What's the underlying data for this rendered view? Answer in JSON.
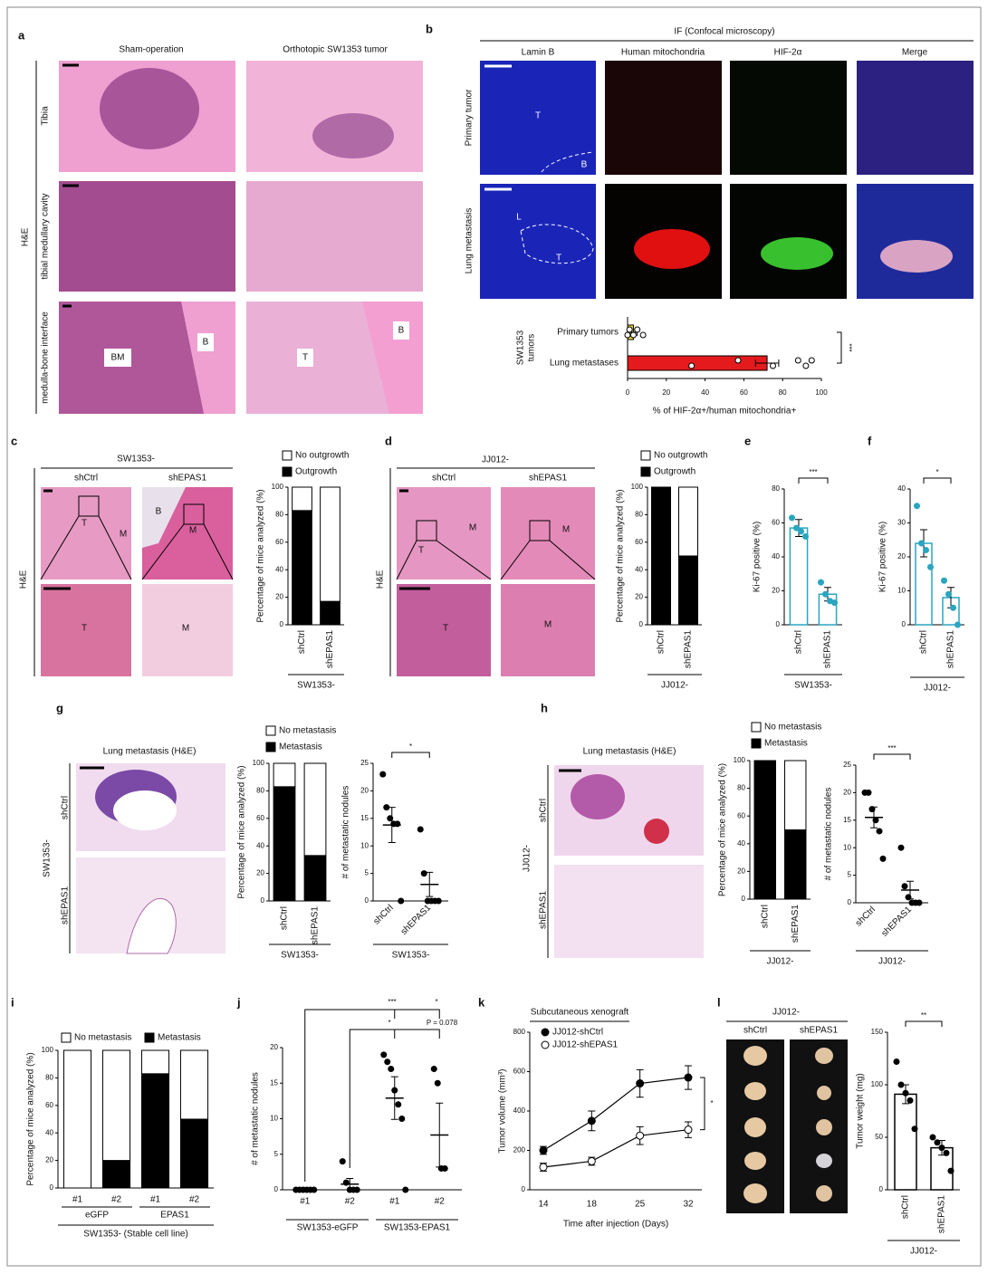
{
  "panel_letters": [
    "a",
    "b",
    "c",
    "d",
    "e",
    "f",
    "g",
    "h",
    "i",
    "j",
    "k",
    "l"
  ],
  "a": {
    "columns": [
      "Sham-operation",
      "Orthotopic SW1353 tumor"
    ],
    "rows": [
      "Tibia",
      "tibial medullary cavity",
      "medulla-bone interface"
    ],
    "stain": "H&E",
    "labels": [
      "BM",
      "B",
      "T",
      "B"
    ]
  },
  "b": {
    "title": "IF (Confocal microscopy)",
    "columns": [
      "Lamin B",
      "Human mitochondria",
      "HIF-2α",
      "Merge"
    ],
    "rows": [
      "Primary tumor",
      "Lung metastasis"
    ],
    "labels": [
      "T",
      "B",
      "L",
      "T"
    ]
  },
  "c": {
    "group": "SW1353-",
    "columns": [
      "shCtrl",
      "shEPAS1"
    ],
    "stain": "H&E",
    "labels": [
      "T",
      "M",
      "B",
      "M",
      "T",
      "M"
    ]
  },
  "d": {
    "group": "JJ012-",
    "columns": [
      "shCtrl",
      "shEPAS1"
    ],
    "stain": "H&E",
    "labels": [
      "T",
      "M",
      "M",
      "T",
      "M"
    ]
  },
  "g": {
    "title": "Lung metastasis (H&E)",
    "group": "SW1353-",
    "rows": [
      "shCtrl",
      "shEPAS1"
    ]
  },
  "h": {
    "title": "Lung metastasis (H&E)",
    "group": "JJ012-",
    "rows": [
      "shCtrl",
      "shEPAS1"
    ]
  },
  "l": {
    "title": "JJ012-",
    "columns": [
      "shCtrl",
      "shEPAS1"
    ]
  },
  "chart_data": [
    {
      "type": "hbar",
      "categories": [
        "Primary tumors",
        "Lung metastases"
      ],
      "category_title": [
        "SW1353",
        "tumors"
      ],
      "values": [
        3,
        72
      ],
      "errors": [
        2,
        6
      ],
      "colors": [
        "#f3dc2b",
        "#e41a1c"
      ],
      "points": [
        [
          0,
          1,
          3,
          5,
          8
        ],
        [
          33,
          57,
          75,
          88,
          92,
          95
        ]
      ],
      "xlim": [
        0,
        100
      ],
      "xticks": [
        0,
        20,
        40,
        60,
        80,
        100
      ],
      "xlabel": "% of HIF-2α+/human mitochondria+",
      "significance": "***"
    },
    {
      "type": "stacked_bar",
      "categories": [
        "shCtrl",
        "shEPAS1"
      ],
      "series": [
        {
          "name": "Outgrowth",
          "color": "#000000",
          "values": [
            83,
            17
          ]
        },
        {
          "name": "No outgrowth",
          "color": "#ffffff",
          "values": [
            17,
            83
          ]
        }
      ],
      "ylim": [
        0,
        100
      ],
      "yticks": [
        0,
        20,
        40,
        60,
        80,
        100
      ],
      "ylabel": "Percentage of mice analyzed (%)",
      "group": "SW1353-"
    },
    {
      "type": "stacked_bar",
      "categories": [
        "shCtrl",
        "shEPAS1"
      ],
      "series": [
        {
          "name": "Outgrowth",
          "color": "#000000",
          "values": [
            100,
            50
          ]
        },
        {
          "name": "No outgrowth",
          "color": "#ffffff",
          "values": [
            0,
            50
          ]
        }
      ],
      "ylim": [
        0,
        100
      ],
      "yticks": [
        0,
        20,
        40,
        60,
        80,
        100
      ],
      "ylabel": "Percentage of mice analyzed (%)",
      "group": "JJ012-"
    },
    {
      "type": "bar_dots",
      "categories": [
        "shCtrl",
        "shEPAS1"
      ],
      "values": [
        57,
        18
      ],
      "errors": [
        5,
        4
      ],
      "points": [
        [
          63,
          57,
          55,
          52
        ],
        [
          25,
          18,
          14,
          13
        ]
      ],
      "color": "#2aa5c0",
      "ylim": [
        0,
        80
      ],
      "yticks": [
        0,
        20,
        40,
        60,
        80
      ],
      "ylabel": "Ki-67 positive (%)",
      "significance": "***",
      "group": "SW1353-"
    },
    {
      "type": "bar_dots",
      "categories": [
        "shCtrl",
        "shEPAS1"
      ],
      "values": [
        24,
        8
      ],
      "errors": [
        4,
        3
      ],
      "points": [
        [
          35,
          24,
          22,
          17
        ],
        [
          13,
          9,
          5,
          0
        ]
      ],
      "color": "#2aa5c0",
      "ylim": [
        0,
        40
      ],
      "yticks": [
        0,
        10,
        20,
        30,
        40
      ],
      "ylabel": "Ki-67 positive (%)",
      "significance": "*",
      "group": "JJ012-"
    },
    {
      "type": "stacked_bar",
      "categories": [
        "shCtrl",
        "shEPAS1"
      ],
      "series": [
        {
          "name": "Metastasis",
          "color": "#000000",
          "values": [
            83,
            33
          ]
        },
        {
          "name": "No metastasis",
          "color": "#ffffff",
          "values": [
            17,
            67
          ]
        }
      ],
      "ylim": [
        0,
        100
      ],
      "yticks": [
        0,
        20,
        40,
        60,
        80,
        100
      ],
      "ylabel": "Percentage of mice analyzed (%)",
      "group": "SW1353-"
    },
    {
      "type": "dots",
      "categories": [
        "shCtrl",
        "shEPAS1"
      ],
      "points": [
        [
          23,
          17,
          15,
          14,
          14,
          0
        ],
        [
          13,
          5,
          0,
          0,
          0,
          0
        ]
      ],
      "means": [
        13.8,
        3
      ],
      "errors": [
        3.2,
        2.2
      ],
      "ylim": [
        0,
        25
      ],
      "yticks": [
        0,
        5,
        10,
        15,
        20,
        25
      ],
      "ylabel": "# of metastatic nodules",
      "significance": "*",
      "group": "SW1353-"
    },
    {
      "type": "stacked_bar",
      "categories": [
        "shCtrl",
        "shEPAS1"
      ],
      "series": [
        {
          "name": "Metastasis",
          "color": "#000000",
          "values": [
            100,
            50
          ]
        },
        {
          "name": "No metastasis",
          "color": "#ffffff",
          "values": [
            0,
            50
          ]
        }
      ],
      "ylim": [
        0,
        100
      ],
      "yticks": [
        0,
        20,
        40,
        60,
        80,
        100
      ],
      "ylabel": "Percentage of mice analyzed (%)",
      "group": "JJ012-"
    },
    {
      "type": "dots",
      "categories": [
        "shCtrl",
        "shEPAS1"
      ],
      "points": [
        [
          20,
          20,
          17,
          15,
          13,
          8
        ],
        [
          10,
          3,
          1,
          0,
          0,
          0
        ]
      ],
      "means": [
        15.5,
        2.3
      ],
      "errors": [
        1.9,
        1.6
      ],
      "ylim": [
        0,
        25
      ],
      "yticks": [
        0,
        5,
        10,
        15,
        20,
        25
      ],
      "ylabel": "# of metastatic nodules",
      "significance": "***",
      "group": "JJ012-"
    },
    {
      "type": "stacked_bar",
      "categories": [
        "#1",
        "#2",
        "#1",
        "#2"
      ],
      "series": [
        {
          "name": "Metastasis",
          "color": "#000000",
          "values": [
            0,
            20,
            83,
            50
          ]
        },
        {
          "name": "No metastasis",
          "color": "#ffffff",
          "values": [
            100,
            80,
            17,
            50
          ]
        }
      ],
      "ylim": [
        0,
        100
      ],
      "yticks": [
        0,
        20,
        40,
        60,
        80,
        100
      ],
      "ylabel": "Percentage of mice analyzed (%)",
      "groups": [
        "eGFP",
        "EPAS1"
      ],
      "group": "SW1353- (Stable cell line)"
    },
    {
      "type": "dots",
      "categories": [
        "#1",
        "#2",
        "#1",
        "#2"
      ],
      "points": [
        [
          0,
          0,
          0,
          0,
          0,
          0
        ],
        [
          4,
          1,
          0,
          0,
          0
        ],
        [
          19,
          18,
          17,
          14,
          12,
          10,
          0
        ],
        [
          17,
          15,
          3,
          3
        ]
      ],
      "means": [
        0,
        0.8,
        12.9,
        7.7
      ],
      "errors": [
        0,
        0.8,
        3,
        4.5
      ],
      "ylim": [
        0,
        20
      ],
      "yticks": [
        0,
        5,
        10,
        15,
        20
      ],
      "ylabel": "# of metastatic nodules",
      "groups": [
        "SW1353-eGFP",
        "SW1353-EPAS1"
      ],
      "significance": [
        "***",
        "*",
        "*",
        "P = 0.078"
      ]
    },
    {
      "type": "line",
      "title": "Subcutaneous xenograft",
      "categories": [
        "14",
        "18",
        "25",
        "32"
      ],
      "series": [
        {
          "name": "JJ012-shCtrl",
          "color": "#000000",
          "marker_fill": "#000000",
          "values": [
            200,
            350,
            540,
            570
          ],
          "errors": [
            20,
            50,
            70,
            60
          ]
        },
        {
          "name": "JJ012-shEPAS1",
          "color": "#000000",
          "marker_fill": "#ffffff",
          "values": [
            115,
            145,
            275,
            305
          ],
          "errors": [
            20,
            20,
            45,
            40
          ]
        }
      ],
      "ylim": [
        0,
        800
      ],
      "yticks": [
        0,
        200,
        400,
        600,
        800
      ],
      "ylabel": "Tumor volume (mm³)",
      "xlabel": "Time after injection (Days)",
      "significance": "*"
    },
    {
      "type": "bar_dots",
      "categories": [
        "shCtrl",
        "shEPAS1"
      ],
      "values": [
        91,
        40
      ],
      "errors": [
        9,
        7
      ],
      "points": [
        [
          122,
          100,
          92,
          85,
          58
        ],
        [
          50,
          45,
          40,
          35,
          18
        ]
      ],
      "color": "#000000",
      "ylim": [
        0,
        150
      ],
      "yticks": [
        0,
        50,
        100,
        150
      ],
      "ylabel": "Tumor weight (mg)",
      "significance": "**",
      "group": "JJ012-"
    }
  ]
}
